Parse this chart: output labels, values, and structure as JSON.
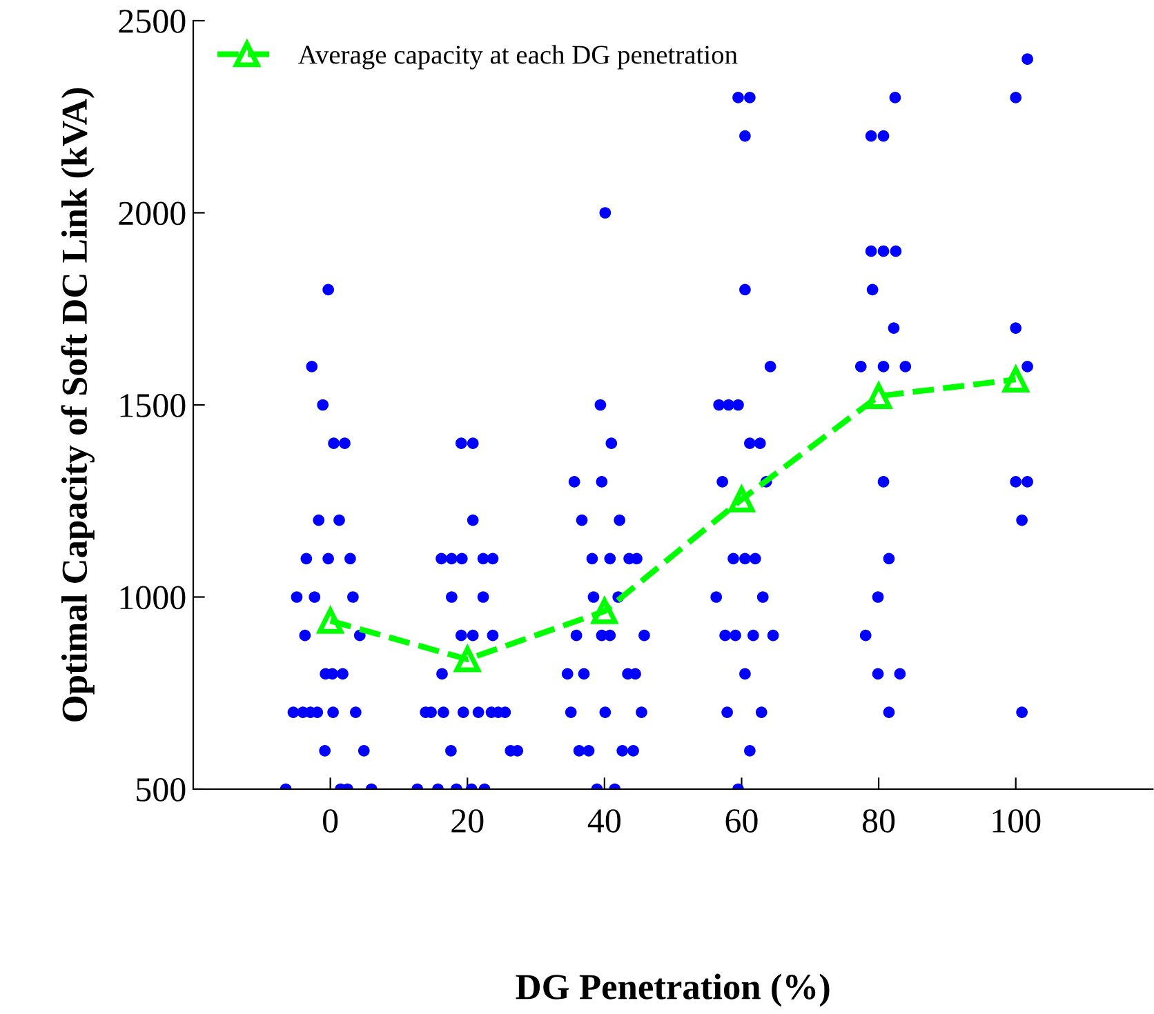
{
  "chart_data": {
    "type": "scatter",
    "xlabel": "DG Penetration (%)",
    "ylabel": "Optimal Capacity of Soft DC Link (kVA)",
    "xlim": [
      -20,
      120
    ],
    "xticks": [
      0,
      20,
      40,
      60,
      80,
      100
    ],
    "ylim": [
      500,
      2500
    ],
    "yticks": [
      500,
      1000,
      1500,
      2000,
      2500
    ],
    "grid": false,
    "legend": "top left",
    "series": [
      {
        "color": "#0000ff",
        "marker": "circle",
        "x": [
          -0.3,
          -2.7,
          -1.1,
          0.5,
          2.1,
          -1.7,
          1.3,
          -3.5,
          -0.3,
          2.9,
          -4.9,
          -2.3,
          3.3,
          -3.7,
          4.3,
          -0.7,
          0.3,
          1.8,
          -5.4,
          -4.0,
          -2.9,
          -1.9,
          0.4,
          3.7,
          -0.8,
          4.9,
          -6.5,
          1.5,
          2.5,
          6.0,
          19.1,
          20.8,
          20.8,
          16.2,
          17.7,
          19.2,
          22.3,
          23.7,
          17.7,
          22.3,
          19.1,
          20.8,
          23.7,
          16.3,
          13.9,
          14.7,
          16.5,
          19.4,
          21.6,
          23.5,
          24.5,
          25.5,
          17.6,
          26.3,
          27.3,
          12.7,
          15.7,
          18.4,
          20.6,
          22.5,
          40.1,
          39.4,
          41.0,
          35.6,
          39.6,
          36.7,
          42.2,
          38.2,
          40.8,
          43.6,
          44.7,
          38.4,
          42.0,
          35.9,
          39.6,
          40.8,
          45.8,
          34.6,
          37.0,
          43.4,
          44.5,
          35.1,
          40.1,
          45.4,
          36.3,
          37.7,
          42.6,
          44.2,
          38.9,
          41.5,
          59.5,
          61.2,
          60.5,
          60.5,
          64.2,
          56.7,
          58.1,
          59.5,
          61.2,
          62.7,
          57.2,
          63.6,
          58.8,
          60.5,
          62.0,
          56.3,
          63.1,
          57.6,
          59.1,
          61.7,
          64.6,
          60.5,
          57.9,
          62.9,
          61.2,
          59.5,
          82.4,
          78.9,
          80.7,
          78.9,
          80.7,
          82.5,
          79.1,
          82.2,
          77.4,
          80.7,
          83.9,
          80.7,
          81.5,
          79.9,
          78.1,
          79.9,
          83.1,
          81.5,
          101.7,
          100.0,
          100.0,
          101.7,
          100.0,
          101.7,
          100.9,
          100.9
        ],
        "values": [
          1800,
          1600,
          1500,
          1400,
          1400,
          1200,
          1200,
          1100,
          1100,
          1100,
          1000,
          1000,
          1000,
          900,
          900,
          800,
          800,
          800,
          700,
          700,
          700,
          700,
          700,
          700,
          600,
          600,
          500,
          500,
          500,
          500,
          1400,
          1400,
          1200,
          1100,
          1100,
          1100,
          1100,
          1100,
          1000,
          1000,
          900,
          900,
          900,
          800,
          700,
          700,
          700,
          700,
          700,
          700,
          700,
          700,
          600,
          600,
          600,
          500,
          500,
          500,
          500,
          500,
          2000,
          1500,
          1400,
          1300,
          1300,
          1200,
          1200,
          1100,
          1100,
          1100,
          1100,
          1000,
          1000,
          900,
          900,
          900,
          900,
          800,
          800,
          800,
          800,
          700,
          700,
          700,
          600,
          600,
          600,
          600,
          500,
          500,
          2300,
          2300,
          2200,
          1800,
          1600,
          1500,
          1500,
          1500,
          1400,
          1400,
          1300,
          1300,
          1100,
          1100,
          1100,
          1000,
          1000,
          900,
          900,
          900,
          900,
          800,
          700,
          700,
          600,
          500,
          2300,
          2200,
          2200,
          1900,
          1900,
          1900,
          1800,
          1700,
          1600,
          1600,
          1600,
          1300,
          1100,
          1000,
          900,
          800,
          800,
          700,
          2400,
          2300,
          1700,
          1600,
          1300,
          1300,
          1200,
          700
        ]
      },
      {
        "type": "line",
        "name": "Average capacity at each DG penetration",
        "color": "#00ff00",
        "marker": "triangle",
        "line_style": "dashed",
        "x": [
          0,
          20,
          40,
          60,
          80,
          100
        ],
        "values": [
          938,
          838,
          963,
          1254,
          1523,
          1566
        ]
      }
    ]
  }
}
